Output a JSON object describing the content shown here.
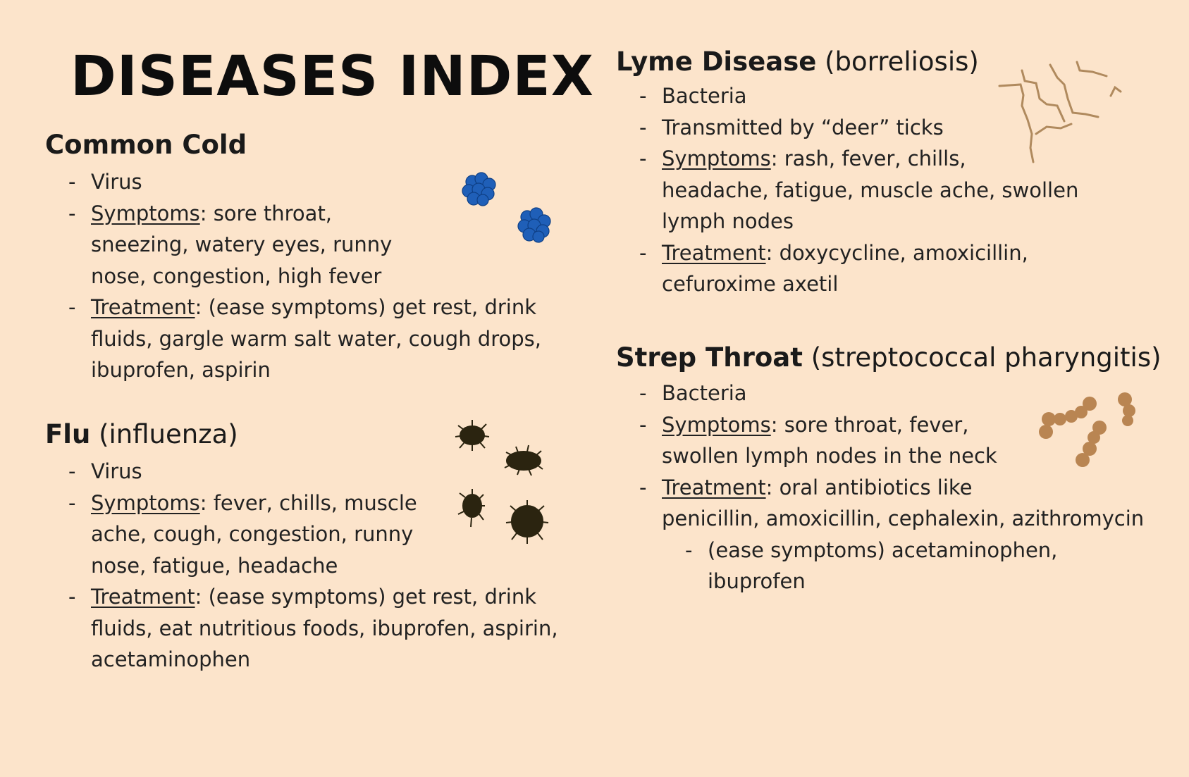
{
  "title": "DISEASES INDEX",
  "colors": {
    "background": "#fce4cb",
    "cold_virus": "#1f5fb8",
    "flu_virus": "#2b2410",
    "lyme_bacteria": "#b08a5e",
    "strep_bacteria": "#b98552"
  },
  "sections": {
    "common_cold": {
      "name": "Common Cold",
      "type": "Virus",
      "symptoms_label": "Symptoms",
      "symptoms_text": ": sore throat,",
      "symptoms_line2": "sneezing, watery eyes, runny",
      "symptoms_line3": "nose, congestion, high fever",
      "treatment_label": "Treatment",
      "treatment_text": ": (ease symptoms) get rest, drink",
      "treatment_line2": "fluids, gargle warm salt water, cough drops,",
      "treatment_line3": "ibuprofen, aspirin",
      "icon": "blue-virus-cluster-icon"
    },
    "flu": {
      "name": "Flu",
      "alt": "(influenza)",
      "type": "Virus",
      "symptoms_label": "Symptoms",
      "symptoms_text": ": fever, chills, muscle",
      "symptoms_line2": "ache, cough, congestion, runny",
      "symptoms_line3": "nose, fatigue, headache",
      "treatment_label": "Treatment",
      "treatment_text": ": (ease symptoms) get rest, drink",
      "treatment_line2": "fluids, eat nutritious foods, ibuprofen, aspirin,",
      "treatment_line3": "acetaminophen",
      "icon": "influenza-virus-icon"
    },
    "lyme": {
      "name": "Lyme Disease",
      "alt": "(borreliosis)",
      "type": "Bacteria",
      "transmission": "Transmitted by “deer” ticks",
      "symptoms_label": "Symptoms",
      "symptoms_text": ": rash, fever, chills,",
      "symptoms_line2": "headache, fatigue, muscle ache, swollen",
      "symptoms_line3": "lymph nodes",
      "treatment_label": "Treatment",
      "treatment_text": ": doxycycline, amoxicillin,",
      "treatment_line2": "cefuroxime axetil",
      "icon": "spirochete-bacteria-icon"
    },
    "strep": {
      "name": "Strep Throat",
      "alt": "(streptococcal pharyngitis)",
      "type": "Bacteria",
      "symptoms_label": "Symptoms",
      "symptoms_text": ": sore throat, fever,",
      "symptoms_line2": "swollen lymph nodes in the neck",
      "treatment_label": "Treatment",
      "treatment_text": ": oral antibiotics like",
      "treatment_line2": "penicillin, amoxicillin, cephalexin, azithromycin",
      "sub_line1": "(ease symptoms) acetaminophen,",
      "sub_line2": "ibuprofen",
      "icon": "streptococcus-bacteria-icon"
    }
  }
}
